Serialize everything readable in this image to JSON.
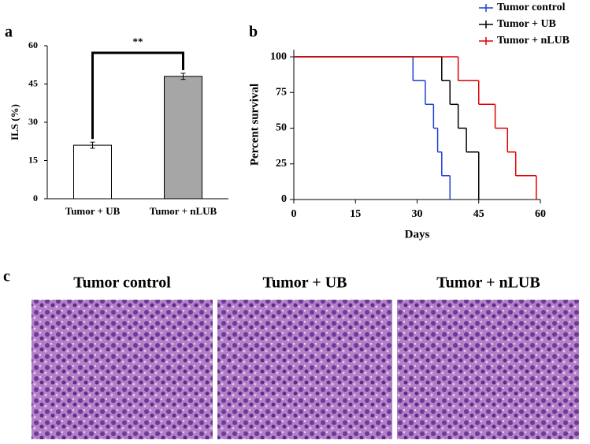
{
  "panels": {
    "a": "a",
    "b": "b",
    "c": "c"
  },
  "images": {
    "titles": [
      "Tumor control",
      "Tumor + UB",
      "Tumor + nLUB"
    ]
  },
  "chart_data": [
    {
      "type": "bar",
      "ylabel": "ILS (%)",
      "categories": [
        "Tumor + UB",
        "Tumor + nLUB"
      ],
      "values": [
        21,
        48
      ],
      "errors": [
        1.2,
        1.2
      ],
      "colors": [
        "#ffffff",
        "#a6a6a6"
      ],
      "annotation": "**",
      "ylim": [
        0,
        60
      ],
      "yticks": [
        0,
        15,
        30,
        45,
        60
      ]
    },
    {
      "type": "step",
      "xlabel": "Days",
      "ylabel": "Percent survival",
      "xlim": [
        0,
        60
      ],
      "xticks": [
        0,
        15,
        30,
        45,
        60
      ],
      "ylim": [
        0,
        105
      ],
      "yticks": [
        0,
        25,
        50,
        75,
        100
      ],
      "legend": "top-right",
      "series": [
        {
          "name": "Tumor control",
          "color": "#1f3fd6",
          "x": [
            0,
            29,
            32,
            34,
            35,
            36,
            38
          ],
          "values": [
            100,
            83.3,
            66.7,
            50,
            33.3,
            16.7,
            0
          ]
        },
        {
          "name": "Tumor + UB",
          "color": "#000000",
          "x": [
            0,
            36,
            38,
            40,
            42,
            45
          ],
          "values": [
            100,
            83.3,
            66.7,
            50,
            33.3,
            0
          ]
        },
        {
          "name": "Tumor + nLUB",
          "color": "#e00000",
          "x": [
            0,
            40,
            45,
            49,
            52,
            54,
            59
          ],
          "values": [
            100,
            83.3,
            66.7,
            50,
            33.3,
            16.7,
            0
          ]
        }
      ]
    }
  ]
}
